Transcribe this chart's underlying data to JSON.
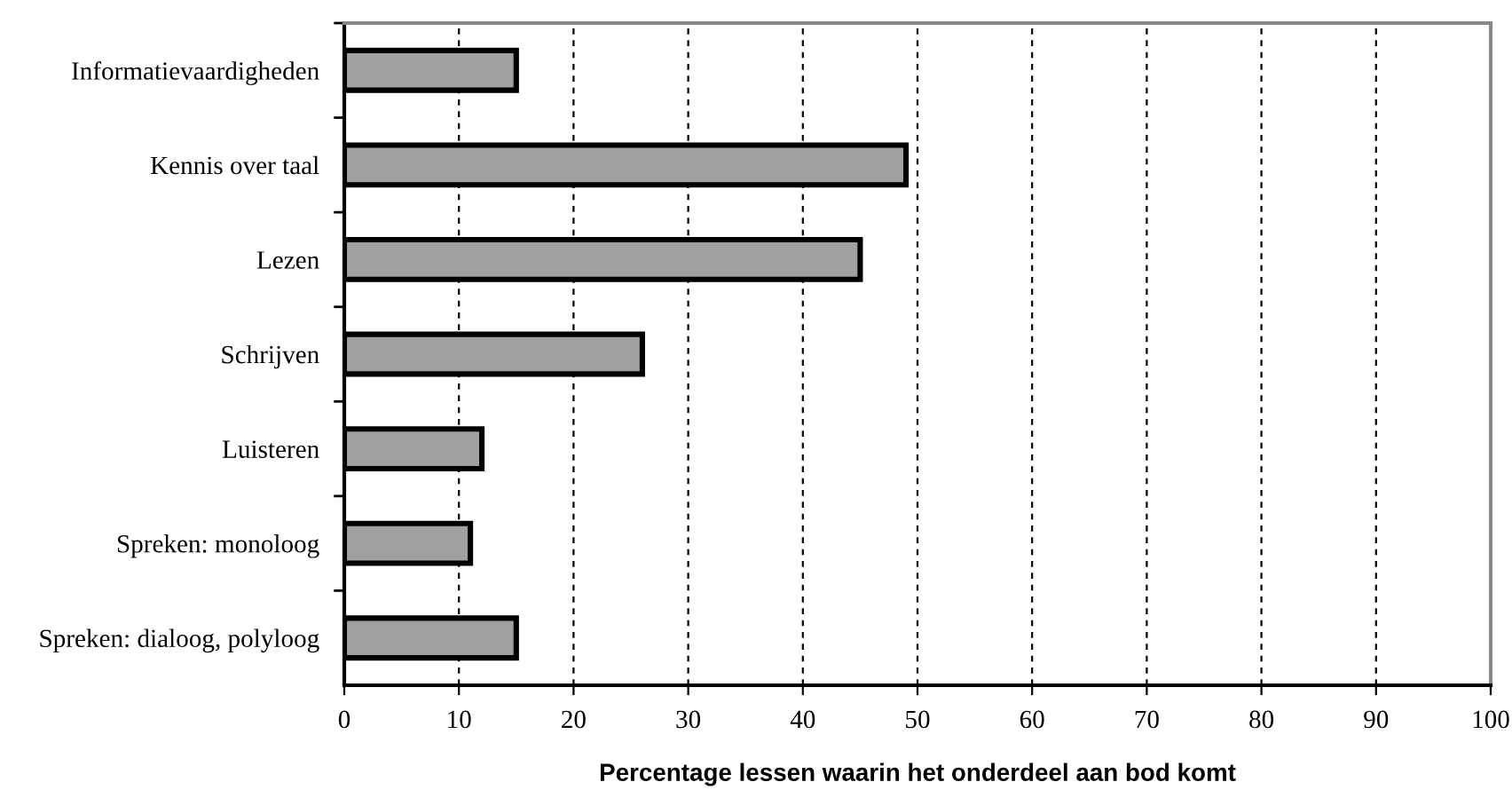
{
  "chart_data": {
    "type": "bar",
    "orientation": "horizontal",
    "xlabel": "Percentage lessen waarin het onderdeel aan bod komt",
    "categories": [
      "Informatievaardigheden",
      "Kennis over taal",
      "Lezen",
      "Schrijven",
      "Luisteren",
      "Spreken: monoloog",
      "Spreken: dialoog, polyloog"
    ],
    "values": [
      15,
      49,
      45,
      26,
      12,
      11,
      15
    ],
    "color": "#a0a0a0",
    "xlim": [
      0,
      100
    ],
    "xticks": [
      0,
      10,
      20,
      30,
      40,
      50,
      60,
      70,
      80,
      90,
      100
    ],
    "grid": "x",
    "line_style": "dashed"
  }
}
